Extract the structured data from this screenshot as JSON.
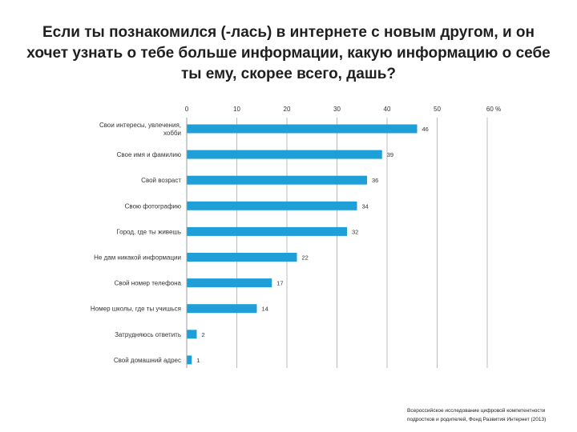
{
  "title": "Если ты познакомился (-лась) в интернете с новым другом, и он хочет узнать о тебе больше информации, какую информацию о себе ты ему, скорее всего, дашь?",
  "chart_data": {
    "type": "bar",
    "orientation": "horizontal",
    "categories": [
      "Свои интересы, увлечения, хобби",
      "Свое имя и фамилию",
      "Свой возраст",
      "Свою фотографию",
      "Город, где ты живешь",
      "Не дам никакой информации",
      "Свой номер телефона",
      "Номер школы, где ты учишься",
      "Затрудняюсь ответить",
      "Свой домашний адрес"
    ],
    "values": [
      46,
      39,
      36,
      34,
      32,
      22,
      17,
      14,
      2,
      1
    ],
    "xticks": [
      "0",
      "10",
      "20",
      "30",
      "40",
      "50",
      "60 %"
    ],
    "xlim": [
      0,
      60
    ],
    "bar_color": "#1f9fd8",
    "grid": true
  },
  "source": {
    "line1": "Всероссийское исследование цифровой компетентности",
    "line2": "подростков и родителей, Фонд Развития Интернет (2013)"
  }
}
